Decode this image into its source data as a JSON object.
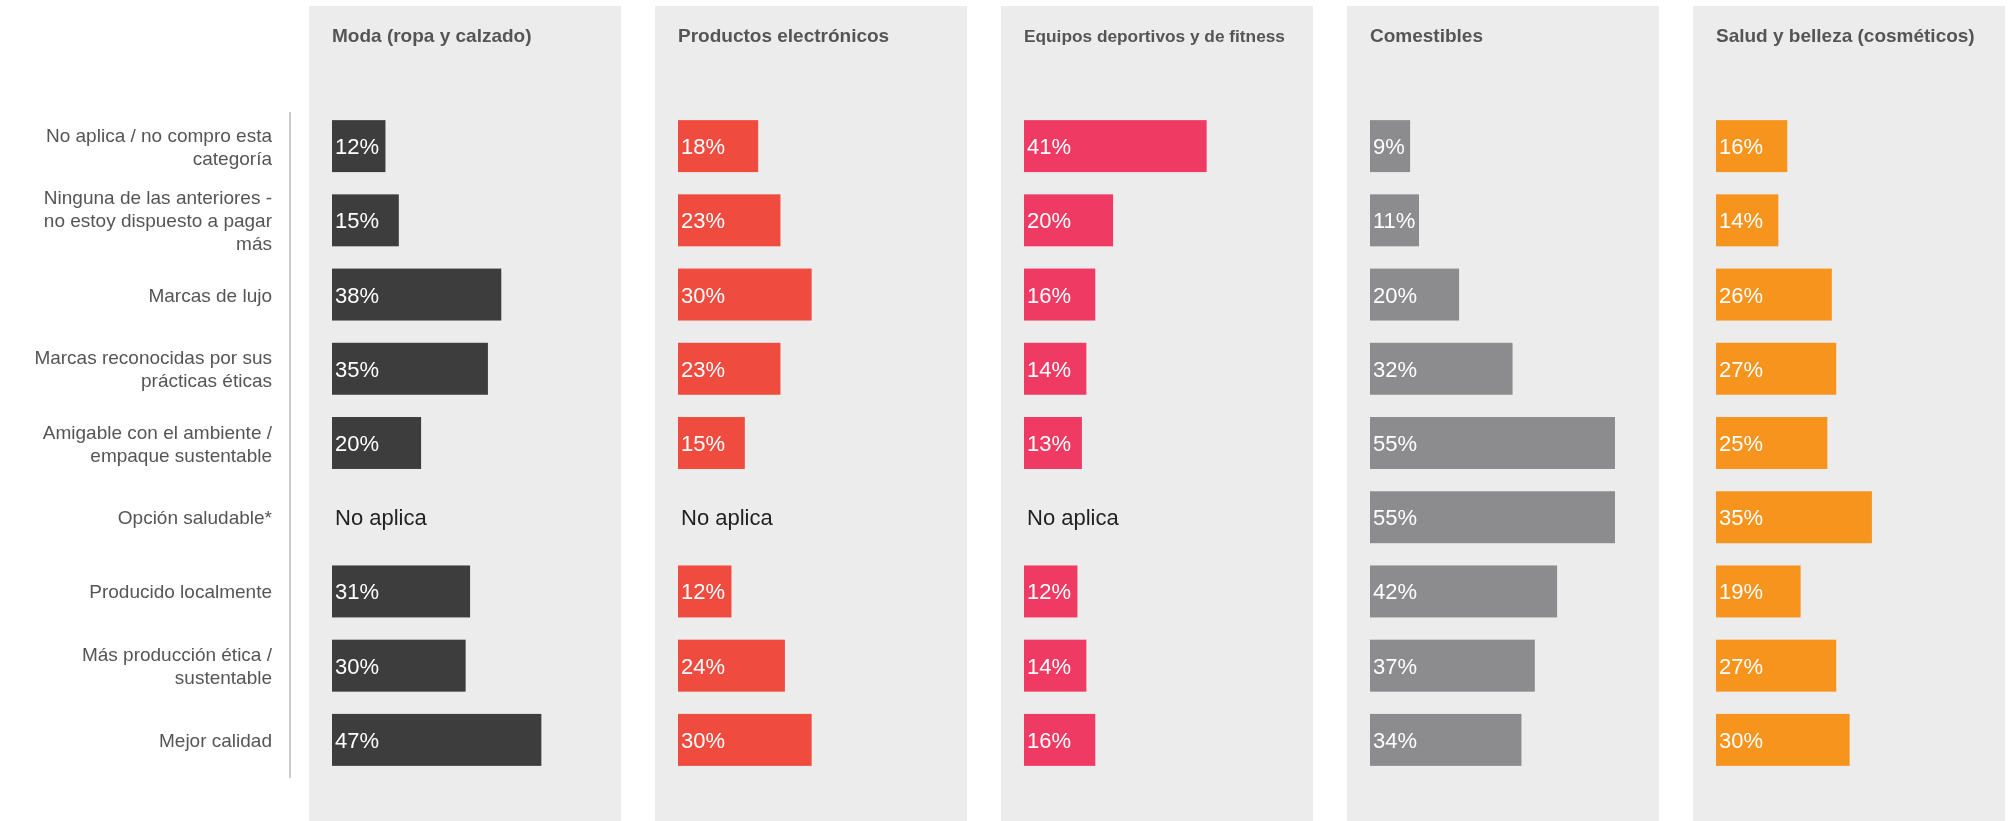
{
  "chart_data": [
    {
      "type": "bar",
      "orientation": "horizontal",
      "title": "Moda (ropa y calzado)",
      "tick_labels": "y",
      "color": "#3d3d3d",
      "categories": [
        "No aplica / no compro esta categoría",
        "Ninguna de las anteriores - no estoy dispuesto a pagar más",
        "Marcas de lujo",
        "Marcas reconocidas por sus prácticas éticas",
        "Amigable con el ambiente / empaque sustentable",
        "Opción saludable*",
        "Producido localmente",
        "Más producción ética / sustentable",
        "Mejor calidad"
      ],
      "values": [
        12,
        15,
        38,
        35,
        20,
        null,
        31,
        30,
        47
      ],
      "value_labels": [
        "12%",
        "15%",
        "38%",
        "35%",
        "20%",
        "No aplica",
        "31%",
        "30%",
        "47%"
      ]
    },
    {
      "type": "bar",
      "orientation": "horizontal",
      "title": "Productos electrónicos",
      "tick_labels": false,
      "color": "#ef4b3f",
      "categories": [
        "No aplica / no compro esta categoría",
        "Ninguna de las anteriores - no estoy dispuesto a pagar más",
        "Marcas de lujo",
        "Marcas reconocidas por sus prácticas éticas",
        "Amigable con el ambiente / empaque sustentable",
        "Opción saludable*",
        "Producido localmente",
        "Más producción ética / sustentable",
        "Mejor calidad"
      ],
      "values": [
        18,
        23,
        30,
        23,
        15,
        null,
        12,
        24,
        30
      ],
      "value_labels": [
        "18%",
        "23%",
        "30%",
        "23%",
        "15%",
        "No aplica",
        "12%",
        "24%",
        "30%"
      ]
    },
    {
      "type": "bar",
      "orientation": "horizontal",
      "title": "Equipos deportivos y de fitness",
      "tick_labels": false,
      "color": "#ef3a63",
      "categories": [
        "No aplica / no compro esta categoría",
        "Ninguna de las anteriores - no estoy dispuesto a pagar más",
        "Marcas de lujo",
        "Marcas reconocidas por sus prácticas éticas",
        "Amigable con el ambiente / empaque sustentable",
        "Opción saludable*",
        "Producido localmente",
        "Más producción ética / sustentable",
        "Mejor calidad"
      ],
      "values": [
        41,
        20,
        16,
        14,
        13,
        null,
        12,
        14,
        16
      ],
      "value_labels": [
        "41%",
        "20%",
        "16%",
        "14%",
        "13%",
        "No aplica",
        "12%",
        "14%",
        "16%"
      ]
    },
    {
      "type": "bar",
      "orientation": "horizontal",
      "title": "Comestibles",
      "tick_labels": false,
      "color": "#8c8c8e",
      "categories": [
        "No aplica / no compro esta categoría",
        "Ninguna de las anteriores - no estoy dispuesto a pagar más",
        "Marcas de lujo",
        "Marcas reconocidas por sus prácticas éticas",
        "Amigable con el ambiente / empaque sustentable",
        "Opción saludable*",
        "Producido localmente",
        "Más producción ética / sustentable",
        "Mejor calidad"
      ],
      "values": [
        9,
        11,
        20,
        32,
        55,
        55,
        42,
        37,
        34
      ],
      "value_labels": [
        "9%",
        "11%",
        "20%",
        "32%",
        "55%",
        "55%",
        "42%",
        "37%",
        "34%"
      ]
    },
    {
      "type": "bar",
      "orientation": "horizontal",
      "title": "Salud y belleza (cosméticos)",
      "tick_labels": false,
      "color": "#f7941d",
      "categories": [
        "No aplica / no compro esta categoría",
        "Ninguna de las anteriores - no estoy dispuesto a pagar más",
        "Marcas de lujo",
        "Marcas reconocidas por sus prácticas éticas",
        "Amigable con el ambiente / empaque sustentable",
        "Opción saludable*",
        "Producido localmente",
        "Más producción ética / sustentable",
        "Mejor calidad"
      ],
      "values": [
        16,
        14,
        26,
        27,
        25,
        35,
        19,
        27,
        30
      ],
      "value_labels": [
        "16%",
        "14%",
        "26%",
        "27%",
        "25%",
        "35%",
        "19%",
        "27%",
        "30%"
      ]
    }
  ]
}
